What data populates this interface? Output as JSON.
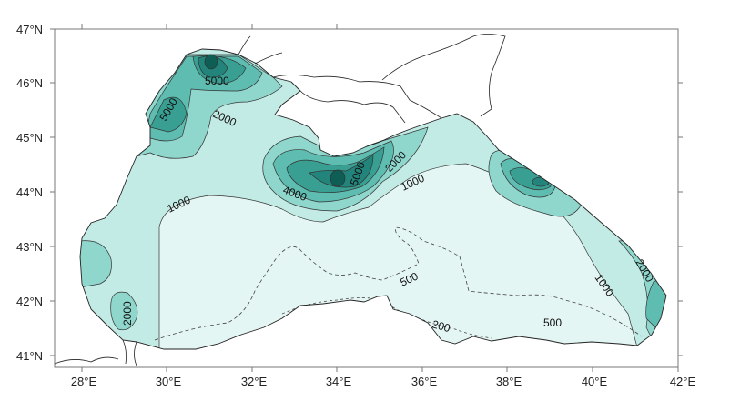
{
  "map": {
    "lat_ticks": [
      "47°N",
      "46°N",
      "45°N",
      "44°N",
      "43°N",
      "42°N",
      "41°N"
    ],
    "lon_ticks": [
      "28°E",
      "30°E",
      "32°E",
      "34°E",
      "36°E",
      "38°E",
      "40°E",
      "42°E"
    ],
    "contour_labels": {
      "nw_5000": "5000",
      "w_5000": "5000",
      "nw_2000": "2000",
      "c_4000": "4000",
      "c_5000": "5000",
      "c_2000": "2000",
      "c_1000": "1000",
      "w_1000": "1000",
      "s_500": "500",
      "s_200": "200",
      "se_500": "500",
      "e_1000": "1000",
      "e_2000": "2000",
      "sw_2000": "2000"
    },
    "fill_colors": [
      "#e4f6f3",
      "#c3ebe5",
      "#8fd6cc",
      "#5fbcb0",
      "#3a9f93",
      "#22847a",
      "#0f5e55"
    ],
    "contour_levels": [
      200,
      500,
      1000,
      2000,
      3000,
      4000,
      5000
    ]
  }
}
